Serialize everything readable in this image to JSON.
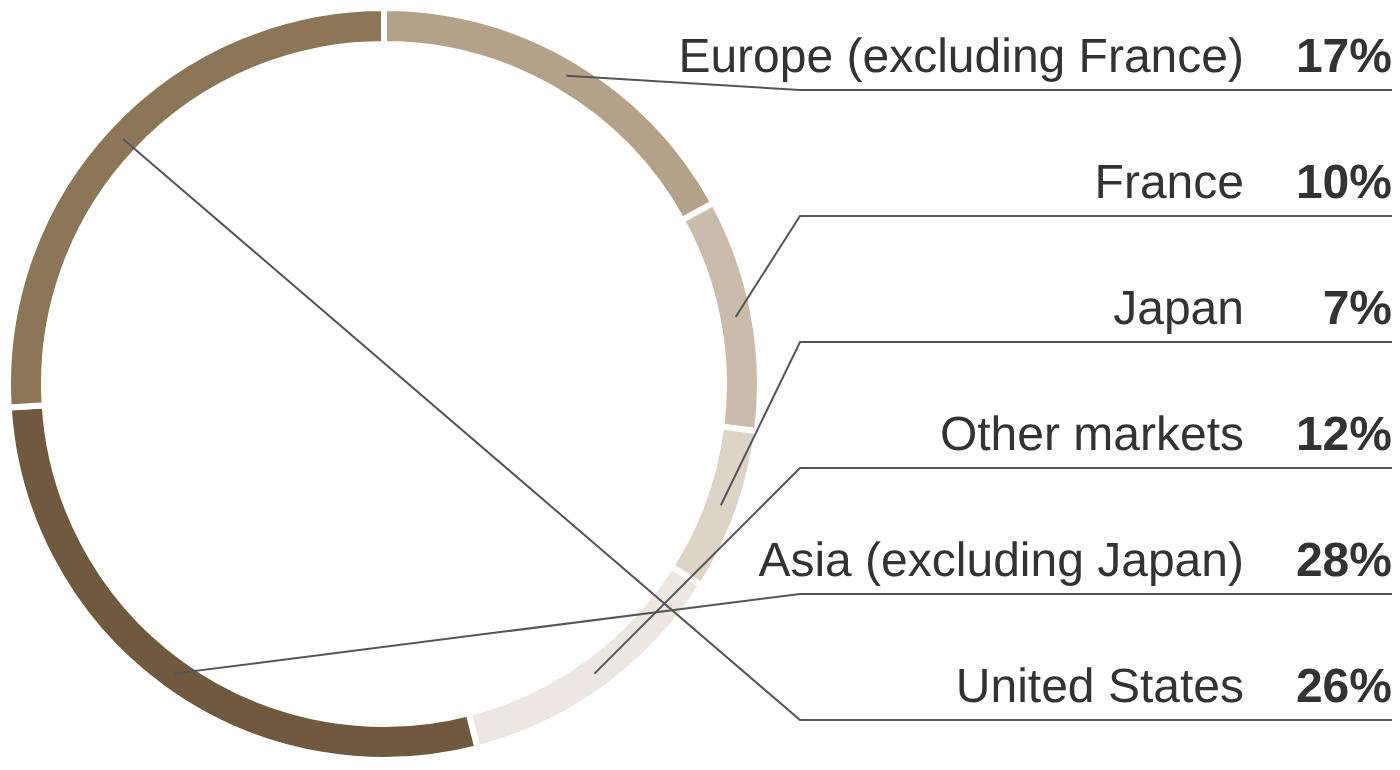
{
  "chart_data": {
    "type": "donut",
    "categories": [
      "Europe (excluding France)",
      "France",
      "Japan",
      "Other markets",
      "Asia (excluding Japan)",
      "United States"
    ],
    "values": [
      17,
      10,
      7,
      12,
      28,
      26
    ],
    "value_labels": [
      "17%",
      "10%",
      "7%",
      "12%",
      "28%",
      "26%"
    ],
    "colors": [
      "#b3a189",
      "#c9bcaa",
      "#ddd4c8",
      "#ece7e0",
      "#6f5a3f",
      "#8b7658"
    ]
  }
}
